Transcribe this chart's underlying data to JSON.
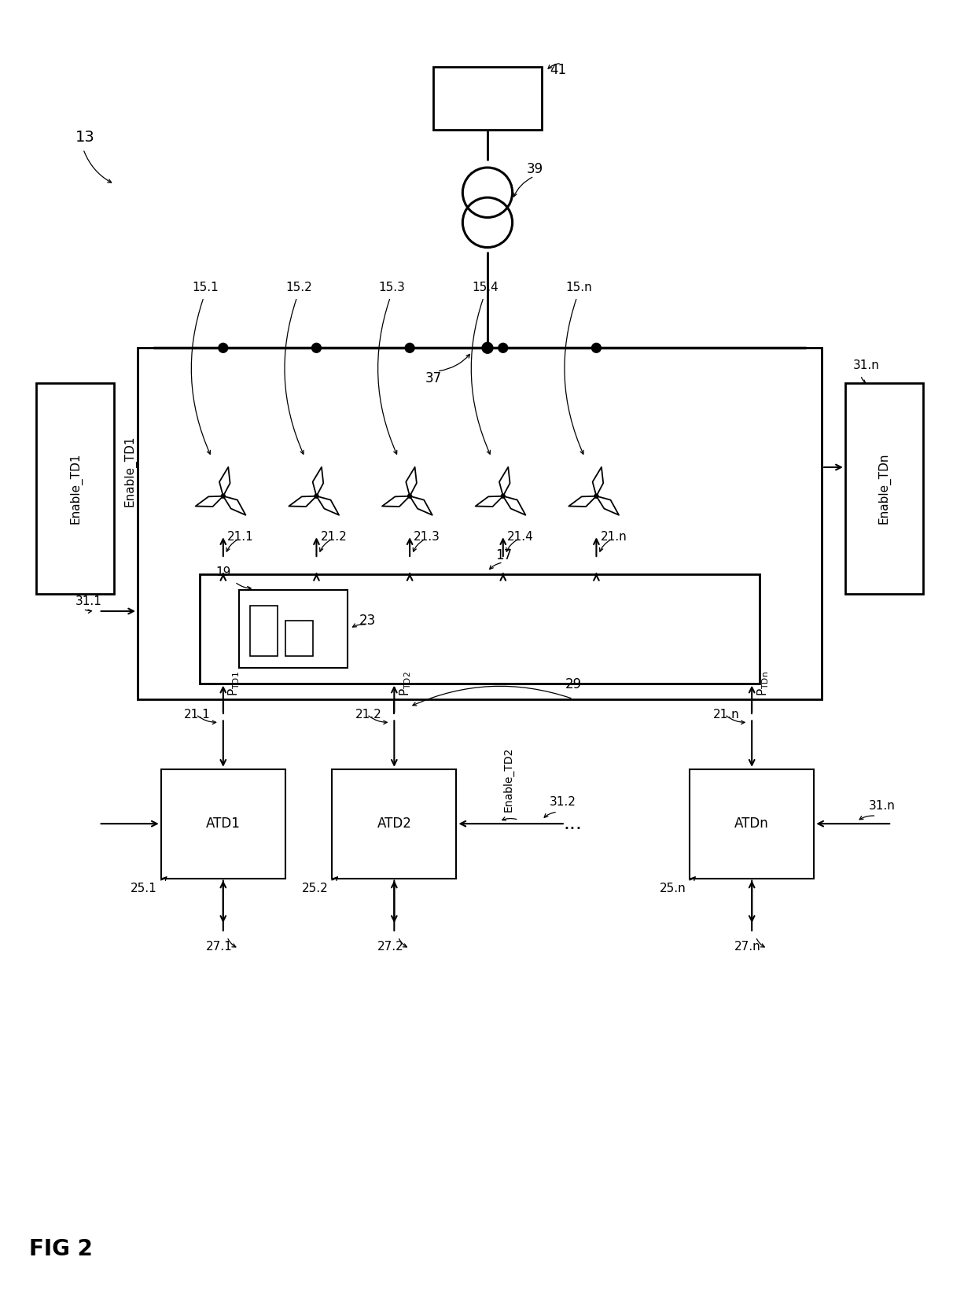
{
  "bg_color": "#ffffff",
  "fig_label": "13",
  "fig_name": "FIG 2",
  "fs_large": 14,
  "fs_med": 12,
  "fs_small": 11,
  "wind_turbines": [
    "15.1",
    "15.2",
    "15.3",
    "15.4",
    "15.n"
  ],
  "turbine_signals": [
    "21.1",
    "21.2",
    "21.3",
    "21.4",
    "21.n"
  ],
  "atd_boxes": [
    "ATD1",
    "ATD2",
    "ATDn"
  ],
  "atd_labels": [
    "25.1",
    "25.2",
    "25.n"
  ],
  "input_signals": [
    "27.1",
    "27.2",
    "27.n"
  ],
  "enable_signals_atd": [
    "31.1",
    "31.2",
    "31.n"
  ],
  "power_signals": [
    "P_TD1",
    "P_TD2",
    "P_TDn"
  ],
  "signal_labels_bottom": [
    "21.1",
    "21.2",
    "21.n"
  ],
  "enable_td2": "Enable_TD2",
  "dots": "...",
  "label_29": "29",
  "label_17": "17",
  "label_19": "19",
  "label_23": "23",
  "label_37": "37",
  "label_39": "39",
  "label_41": "41",
  "label_31_1": "31.1",
  "label_31_n": "31.n",
  "enable_td1": "Enable_TD1",
  "enable_tdn": "Enable_TDn",
  "lw_main": 2.0,
  "lw_thin": 1.5
}
